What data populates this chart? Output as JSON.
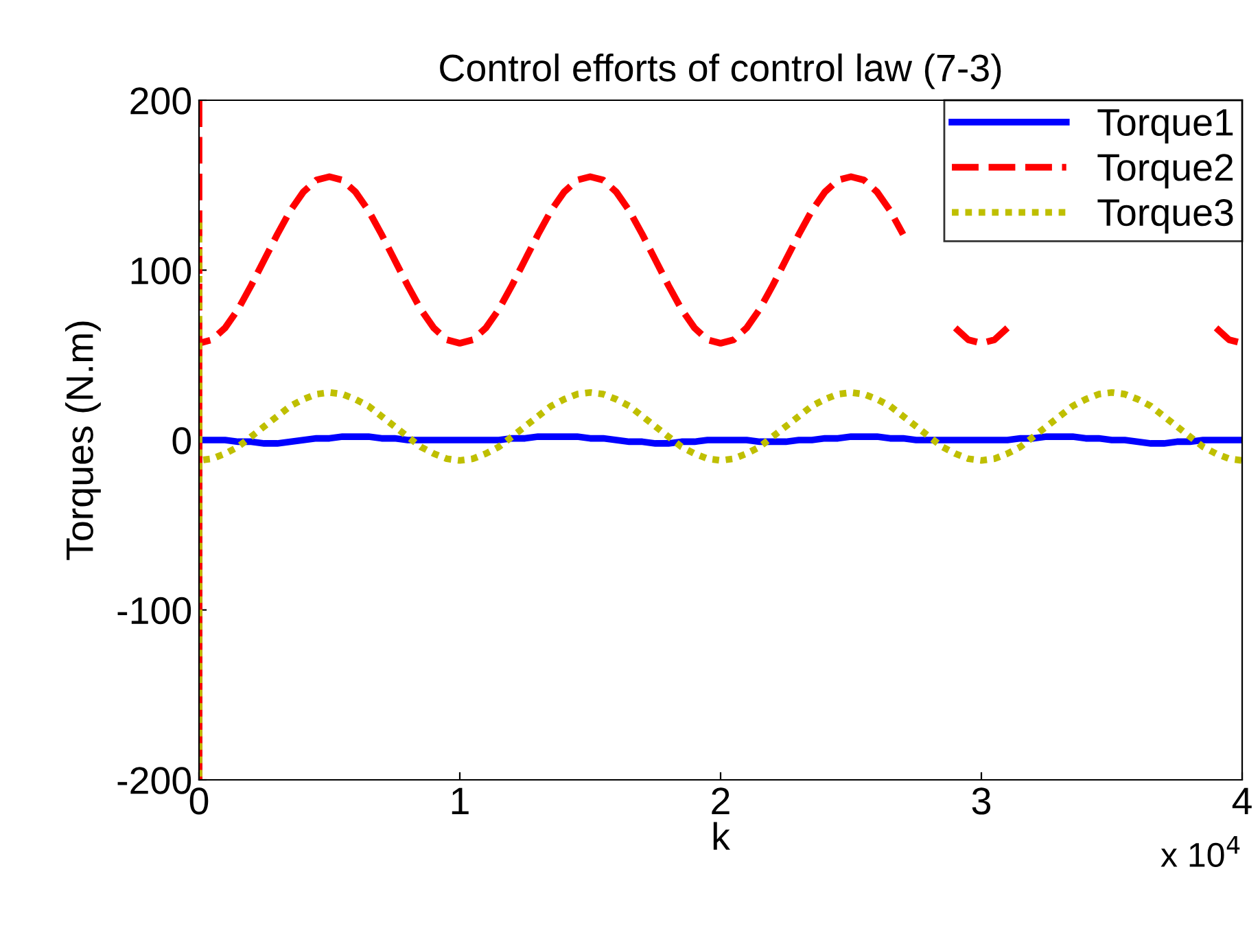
{
  "chart_data": {
    "type": "line",
    "title": "Control efforts of control law (7-3)",
    "xlabel": "k",
    "ylabel": "Torques (N.m)",
    "x": [
      0,
      0,
      0,
      0.05,
      0.1,
      0.15,
      0.2,
      0.25,
      0.3,
      0.35,
      0.4,
      0.45,
      0.5,
      0.55,
      0.6,
      0.65,
      0.7,
      0.75,
      0.8,
      0.85,
      0.9,
      0.95,
      1,
      1.05,
      1.1,
      1.15,
      1.2,
      1.25,
      1.3,
      1.35,
      1.4,
      1.45,
      1.5,
      1.55,
      1.6,
      1.65,
      1.7,
      1.75,
      1.8,
      1.85,
      1.9,
      1.95,
      2,
      2.05,
      2.1,
      2.15,
      2.2,
      2.25,
      2.3,
      2.35,
      2.4,
      2.45,
      2.5,
      2.55,
      2.6,
      2.65,
      2.7,
      2.75,
      2.8,
      2.85,
      2.9,
      2.95,
      3,
      3.05,
      3.1,
      3.15,
      3.2,
      3.25,
      3.3,
      3.35,
      3.4,
      3.45,
      3.5,
      3.55,
      3.6,
      3.65,
      3.7,
      3.75,
      3.8,
      3.85,
      3.9,
      3.95,
      4
    ],
    "series": [
      {
        "name": "Torque1",
        "color": "#0000ff",
        "line_style": "solid",
        "values": [
          0,
          -200,
          0,
          0,
          0,
          -1,
          -1,
          -2,
          -2,
          -1,
          0,
          1,
          1,
          2,
          2,
          2,
          1,
          1,
          0,
          0,
          0,
          0,
          0,
          0,
          0,
          0,
          1,
          1,
          2,
          2,
          2,
          2,
          1,
          1,
          0,
          -1,
          -1,
          -2,
          -2,
          -1,
          -1,
          0,
          0,
          0,
          0,
          -1,
          -1,
          -1,
          0,
          0,
          1,
          1,
          2,
          2,
          2,
          1,
          1,
          0,
          0,
          0,
          0,
          0,
          0,
          0,
          0,
          1,
          1,
          2,
          2,
          2,
          1,
          1,
          0,
          0,
          -1,
          -2,
          -2,
          -1,
          -1,
          0,
          0,
          0,
          0
        ]
      },
      {
        "name": "Torque2",
        "color": "#ff0000",
        "line_style": "dashed",
        "values": [
          200,
          -200,
          57,
          59,
          66,
          77,
          91,
          106,
          121,
          135,
          146,
          153,
          155,
          153,
          146,
          135,
          121,
          106,
          91,
          77,
          66,
          59,
          57,
          59,
          66,
          77,
          91,
          106,
          121,
          135,
          146,
          153,
          155,
          153,
          146,
          135,
          121,
          106,
          91,
          77,
          66,
          59,
          57,
          59,
          66,
          77,
          91,
          106,
          121,
          135,
          146,
          153,
          155,
          153,
          146,
          135,
          121,
          null,
          null,
          null,
          66,
          59,
          57,
          59,
          66,
          null,
          null,
          null,
          null,
          null,
          null,
          null,
          null,
          null,
          null,
          null,
          null,
          null,
          null,
          null,
          66,
          59,
          57
        ]
      },
      {
        "name": "Torque3",
        "color": "#bfbf00",
        "line_style": "dotted",
        "values": [
          128,
          -200,
          -12,
          -11,
          -8,
          -4,
          2,
          8,
          14,
          20,
          24,
          27,
          28,
          27,
          24,
          20,
          14,
          8,
          2,
          -4,
          -8,
          -11,
          -12,
          -11,
          -8,
          -4,
          2,
          8,
          14,
          20,
          24,
          27,
          28,
          27,
          24,
          20,
          14,
          8,
          2,
          -4,
          -8,
          -11,
          -12,
          -11,
          -8,
          -4,
          2,
          8,
          14,
          20,
          24,
          27,
          28,
          27,
          24,
          20,
          14,
          8,
          2,
          -4,
          -8,
          -11,
          -12,
          -11,
          -8,
          -4,
          2,
          8,
          14,
          20,
          24,
          27,
          28,
          27,
          24,
          20,
          14,
          8,
          2,
          -4,
          -8,
          -11,
          -12
        ]
      }
    ],
    "xlim": [
      0,
      4
    ],
    "xticks": [
      0,
      1,
      2,
      3,
      4
    ],
    "ylim": [
      -200,
      200
    ],
    "yticks": [
      -200,
      -100,
      0,
      100,
      200
    ],
    "annotations": [
      "x 10$^{4}$"
    ],
    "legend": "top right",
    "grid": false
  }
}
